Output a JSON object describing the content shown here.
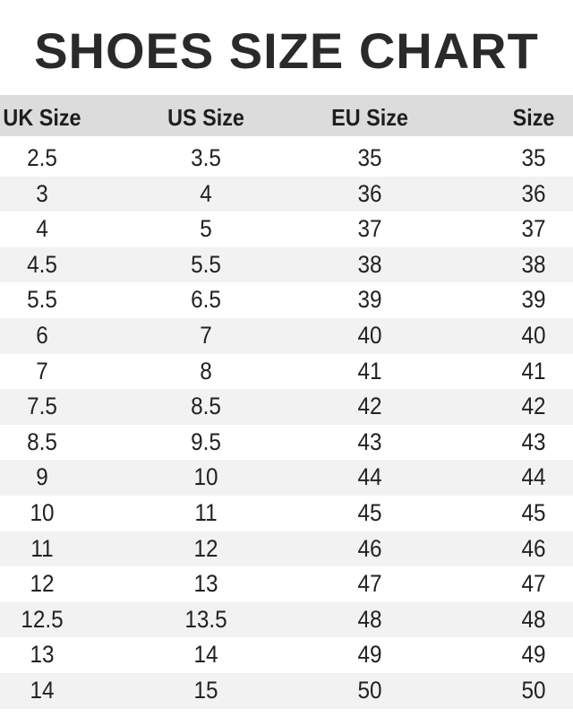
{
  "title": "SHOES SIZE CHART",
  "headers": [
    "UK Size",
    "US Size",
    "EU Size",
    "Size"
  ],
  "rows": [
    [
      "2.5",
      "3.5",
      "35",
      "35"
    ],
    [
      "3",
      "4",
      "36",
      "36"
    ],
    [
      "4",
      "5",
      "37",
      "37"
    ],
    [
      "4.5",
      "5.5",
      "38",
      "38"
    ],
    [
      "5.5",
      "6.5",
      "39",
      "39"
    ],
    [
      "6",
      "7",
      "40",
      "40"
    ],
    [
      "7",
      "8",
      "41",
      "41"
    ],
    [
      "7.5",
      "8.5",
      "42",
      "42"
    ],
    [
      "8.5",
      "9.5",
      "43",
      "43"
    ],
    [
      "9",
      "10",
      "44",
      "44"
    ],
    [
      "10",
      "11",
      "45",
      "45"
    ],
    [
      "11",
      "12",
      "46",
      "46"
    ],
    [
      "12",
      "13",
      "47",
      "47"
    ],
    [
      "12.5",
      "13.5",
      "48",
      "48"
    ],
    [
      "13",
      "14",
      "49",
      "49"
    ],
    [
      "14",
      "15",
      "50",
      "50"
    ]
  ]
}
